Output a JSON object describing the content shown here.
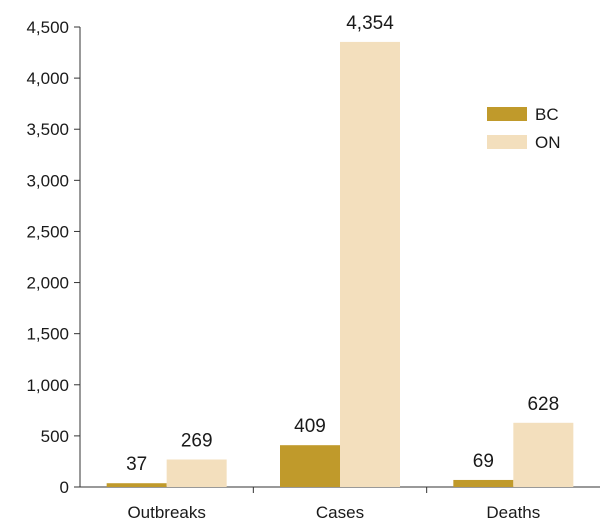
{
  "chart_data": {
    "type": "bar",
    "categories": [
      "Outbreaks",
      "Cases",
      "Deaths"
    ],
    "series": [
      {
        "name": "BC",
        "values": [
          37,
          409,
          69
        ],
        "color": "#c09a2b"
      },
      {
        "name": "ON",
        "values": [
          269,
          4354,
          628
        ],
        "color": "#f3dfbd"
      }
    ],
    "data_labels": [
      [
        "37",
        "409",
        "69"
      ],
      [
        "269",
        "4,354",
        "628"
      ]
    ],
    "ylim": [
      0,
      4500
    ],
    "yticks": [
      0,
      500,
      1000,
      1500,
      2000,
      2500,
      3000,
      3500,
      4000,
      4500
    ],
    "ytick_labels": [
      "0",
      "500",
      "1,000",
      "1,500",
      "2,000",
      "2,500",
      "3,000",
      "3,500",
      "4,000",
      "4,500"
    ],
    "title": "",
    "xlabel": "",
    "ylabel": "",
    "legend_position": "right",
    "grid": false
  }
}
